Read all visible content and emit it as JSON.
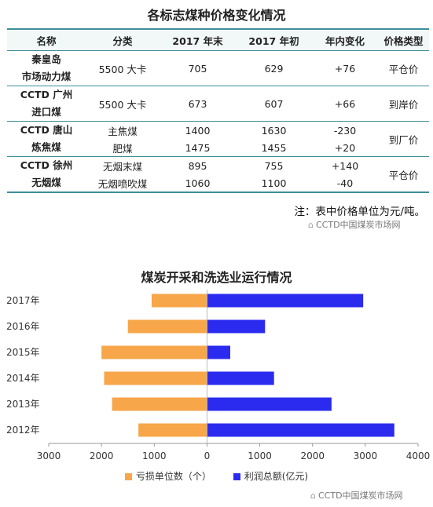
{
  "table": {
    "title": "各标志煤种价格变化情况",
    "headers": [
      "名称",
      "分类",
      "2017 年末",
      "2017 年初",
      "年内变化",
      "价格类型"
    ],
    "groups": [
      {
        "name": [
          "秦皇岛",
          "市场动力煤"
        ],
        "rows": [
          [
            "5500 大卡",
            "705",
            "629",
            "+76"
          ]
        ],
        "price_type": "平仓价"
      },
      {
        "name": [
          "CCTD 广州",
          "进口煤"
        ],
        "rows": [
          [
            "5500 大卡",
            "673",
            "607",
            "+66"
          ]
        ],
        "price_type": "到岸价"
      },
      {
        "name": [
          "CCTD 唐山",
          "炼焦煤"
        ],
        "rows": [
          [
            "主焦煤",
            "1400",
            "1630",
            "-230"
          ],
          [
            "肥煤",
            "1475",
            "1455",
            "+20"
          ]
        ],
        "price_type": "到厂价"
      },
      {
        "name": [
          "CCTD 徐州",
          "无烟煤"
        ],
        "rows": [
          [
            "无烟末煤",
            "895",
            "755",
            "+140"
          ],
          [
            "无烟喷吹煤",
            "1060",
            "1100",
            "-40"
          ]
        ],
        "price_type": "平仓价"
      }
    ],
    "note": "注：表中价格单位为元/吨。"
  },
  "watermark": "CCTD中国煤炭市场网",
  "watermark_icon": "wechat-icon",
  "chart_data": {
    "type": "bar",
    "orientation": "horizontal",
    "title": "煤炭开采和洗选业运行情况",
    "categories": [
      "2017年",
      "2016年",
      "2015年",
      "2014年",
      "2013年",
      "2012年"
    ],
    "series": [
      {
        "name": "亏损单位数（个）",
        "color": "#f7a64a",
        "direction": "left",
        "values": [
          1050,
          1500,
          2000,
          1950,
          1800,
          1300
        ]
      },
      {
        "name": "利润总额(亿元)",
        "color": "#2b2bef",
        "direction": "right",
        "values": [
          2960,
          1100,
          440,
          1270,
          2360,
          3550
        ]
      }
    ],
    "xlim": [
      -3000,
      4000
    ],
    "xticks": [
      -3000,
      -2000,
      -1000,
      0,
      1000,
      2000,
      3000,
      4000
    ],
    "xtick_labels": [
      "3000",
      "2000",
      "1000",
      "0",
      "1000",
      "2000",
      "3000",
      "4000"
    ],
    "grid": false,
    "legend_position": "bottom"
  }
}
